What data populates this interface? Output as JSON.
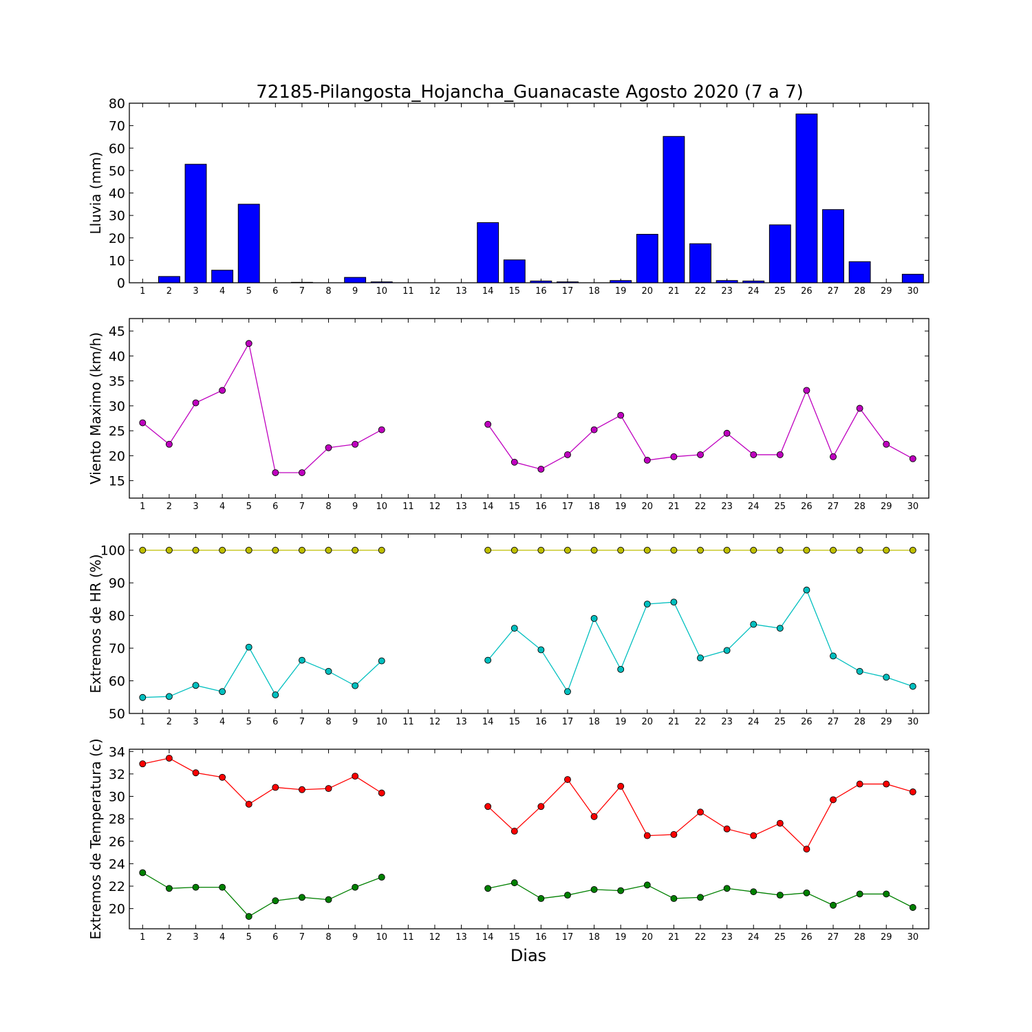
{
  "title": "72185-Pilangosta_Hojancha_Guanacaste Agosto 2020  (7 a 7)",
  "xlabel": "Dias",
  "chart_data": [
    {
      "type": "bar",
      "ylabel": "Lluvia (mm)",
      "ylim": [
        0,
        80
      ],
      "yticks": [
        0,
        10,
        20,
        30,
        40,
        50,
        60,
        70,
        80
      ],
      "x": [
        1,
        2,
        3,
        4,
        5,
        6,
        7,
        8,
        9,
        10,
        11,
        12,
        13,
        14,
        15,
        16,
        17,
        18,
        19,
        20,
        21,
        22,
        23,
        24,
        25,
        26,
        27,
        28,
        29,
        30
      ],
      "series": [
        {
          "color": "#0000ff",
          "values": [
            0,
            2.8,
            52.8,
            5.6,
            35.0,
            0,
            0.2,
            0,
            2.4,
            0.4,
            0,
            0,
            0,
            26.8,
            10.2,
            0.8,
            0.4,
            0,
            1.0,
            21.6,
            65.2,
            17.4,
            1.0,
            0.8,
            25.8,
            75.2,
            32.6,
            9.4,
            0,
            3.8
          ]
        }
      ]
    },
    {
      "type": "line",
      "ylabel": "Viento Maximo (km/h)",
      "ylim": [
        11.5,
        47.5
      ],
      "yticks": [
        15,
        20,
        25,
        30,
        35,
        40,
        45
      ],
      "x": [
        1,
        2,
        3,
        4,
        5,
        6,
        7,
        8,
        9,
        10,
        11,
        12,
        13,
        14,
        15,
        16,
        17,
        18,
        19,
        20,
        21,
        22,
        23,
        24,
        25,
        26,
        27,
        28,
        29,
        30
      ],
      "series": [
        {
          "color": "#bf00bf",
          "values": [
            26.6,
            22.3,
            30.6,
            33.1,
            42.5,
            16.6,
            16.6,
            21.6,
            22.3,
            25.2,
            null,
            null,
            null,
            26.3,
            18.7,
            17.3,
            20.2,
            25.2,
            28.1,
            19.1,
            19.8,
            20.2,
            24.5,
            20.2,
            20.2,
            33.1,
            19.8,
            29.5,
            22.3,
            19.4
          ]
        }
      ]
    },
    {
      "type": "line",
      "ylabel": "Extremos de HR (%)",
      "ylim": [
        50,
        105
      ],
      "yticks": [
        50,
        60,
        70,
        80,
        90,
        100
      ],
      "x": [
        1,
        2,
        3,
        4,
        5,
        6,
        7,
        8,
        9,
        10,
        11,
        12,
        13,
        14,
        15,
        16,
        17,
        18,
        19,
        20,
        21,
        22,
        23,
        24,
        25,
        26,
        27,
        28,
        29,
        30
      ],
      "series": [
        {
          "color": "#bfbf00",
          "values": [
            100,
            100,
            100,
            100,
            100,
            100,
            100,
            100,
            100,
            100,
            null,
            null,
            null,
            100,
            100,
            100,
            100,
            100,
            100,
            100,
            100,
            100,
            100,
            100,
            100,
            100,
            100,
            100,
            100,
            100
          ]
        },
        {
          "color": "#00bfbf",
          "values": [
            54.9,
            55.2,
            58.6,
            56.7,
            70.3,
            55.7,
            66.3,
            62.9,
            58.5,
            66.1,
            null,
            null,
            null,
            66.3,
            76.1,
            69.5,
            56.7,
            79.1,
            63.5,
            83.5,
            84.1,
            67.0,
            69.3,
            77.3,
            76.1,
            87.8,
            67.6,
            62.9,
            61.1,
            58.3
          ]
        }
      ]
    },
    {
      "type": "line",
      "ylabel": "Extremos de Temperatura (c)",
      "ylim": [
        18.2,
        34.2
      ],
      "yticks": [
        20,
        22,
        24,
        26,
        28,
        30,
        32,
        34
      ],
      "x": [
        1,
        2,
        3,
        4,
        5,
        6,
        7,
        8,
        9,
        10,
        11,
        12,
        13,
        14,
        15,
        16,
        17,
        18,
        19,
        20,
        21,
        22,
        23,
        24,
        25,
        26,
        27,
        28,
        29,
        30
      ],
      "series": [
        {
          "color": "#ff0000",
          "values": [
            32.9,
            33.4,
            32.1,
            31.7,
            29.3,
            30.8,
            30.6,
            30.7,
            31.8,
            30.3,
            null,
            null,
            null,
            29.1,
            26.9,
            29.1,
            31.5,
            28.2,
            30.9,
            26.5,
            26.6,
            28.6,
            27.1,
            26.5,
            27.6,
            25.3,
            29.7,
            31.1,
            31.1,
            30.4
          ]
        },
        {
          "color": "#008000",
          "values": [
            23.2,
            21.8,
            21.9,
            21.9,
            19.3,
            20.7,
            21.0,
            20.8,
            21.9,
            22.8,
            null,
            null,
            null,
            21.8,
            22.3,
            20.9,
            21.2,
            21.7,
            21.6,
            22.1,
            20.9,
            21.0,
            21.8,
            21.5,
            21.2,
            21.4,
            20.3,
            21.3,
            21.3,
            20.1
          ]
        }
      ]
    }
  ]
}
